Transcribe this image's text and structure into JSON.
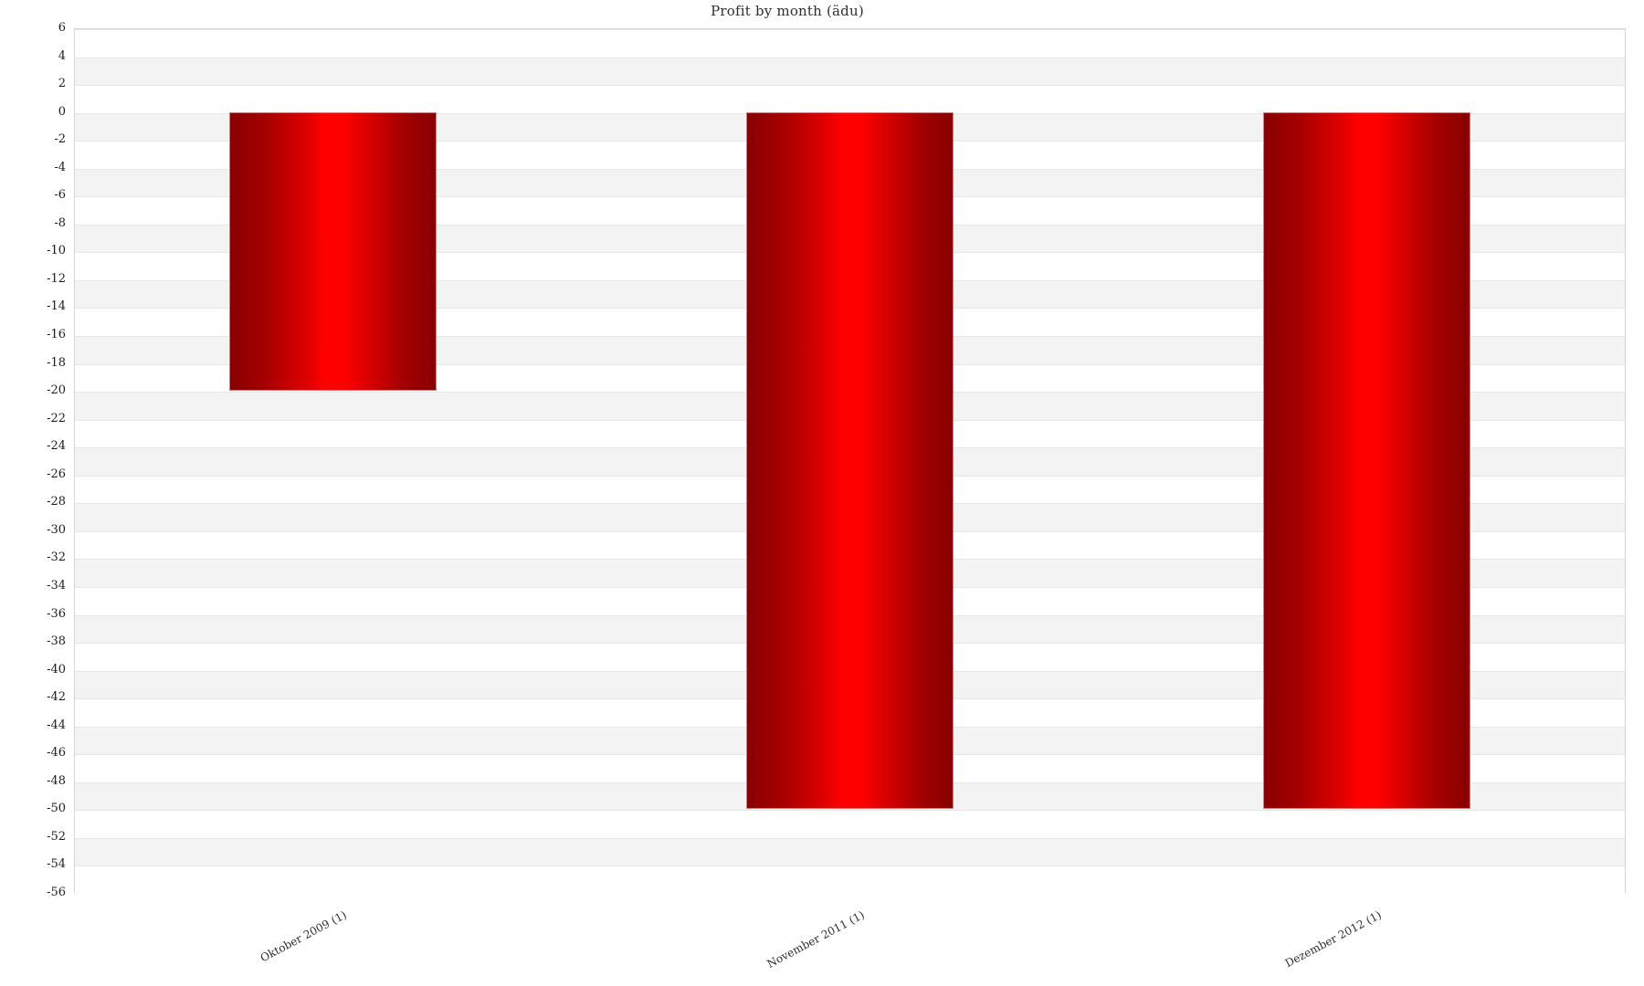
{
  "chart_data": {
    "type": "bar",
    "title": "Profit by month  (ädu)",
    "categories": [
      "Oktober 2009 (1)",
      "November 2011 (1)",
      "Dezember 2012 (1)"
    ],
    "values": [
      -20,
      -50,
      -50
    ],
    "xlabel": "",
    "ylabel": "",
    "ylim": [
      -56,
      6
    ],
    "ytick_step": 2,
    "yticks": [
      6,
      4,
      2,
      0,
      -2,
      -4,
      -6,
      -8,
      -10,
      -12,
      -14,
      -16,
      -18,
      -20,
      -22,
      -24,
      -26,
      -28,
      -30,
      -32,
      -34,
      -36,
      -38,
      -40,
      -42,
      -44,
      -46,
      -48,
      -50,
      -52,
      -54,
      -56
    ],
    "legend_position": "none",
    "grid": "alternating-horizontal-bands",
    "colors": {
      "bar_center": "#ff0000",
      "bar_edge": "#880000",
      "bar_outline": "#759be2",
      "band_gray": "#f3f3f3",
      "band_white": "#ffffff",
      "gridline": "#e7e7e7",
      "plot_border": "#d5d5d5",
      "text": "#2e2e2e"
    }
  }
}
